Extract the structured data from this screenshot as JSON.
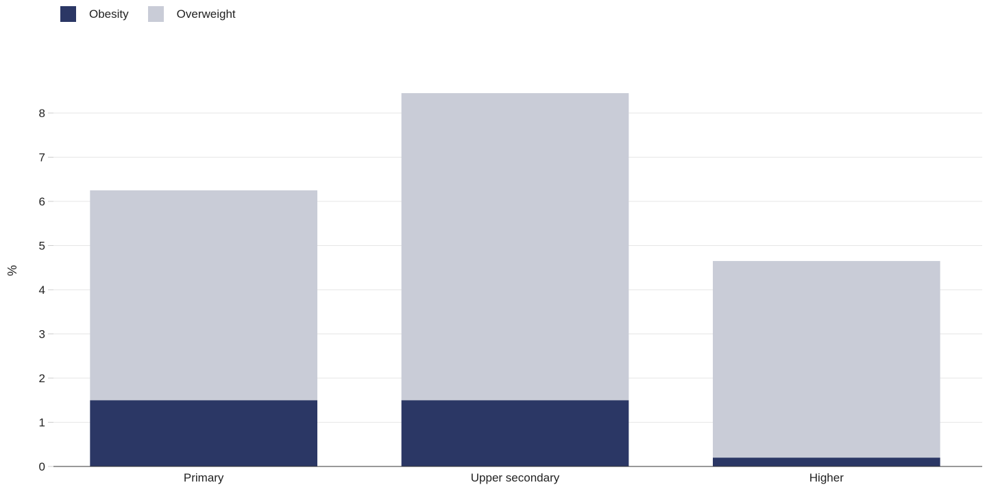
{
  "chart_data": {
    "type": "bar",
    "stacked": true,
    "categories": [
      "Primary",
      "Upper secondary",
      "Higher"
    ],
    "series": [
      {
        "name": "Obesity",
        "values": [
          1.5,
          1.5,
          0.2
        ],
        "color": "#2b3765"
      },
      {
        "name": "Overweight",
        "values": [
          4.75,
          6.95,
          4.45
        ],
        "color": "#c9ccd7"
      }
    ],
    "title": "",
    "xlabel": "",
    "ylabel": "%",
    "ylim": [
      0,
      8.5
    ],
    "yticks": [
      0,
      1,
      2,
      3,
      4,
      5,
      6,
      7,
      8
    ],
    "grid": true,
    "legend_position": "top-left"
  }
}
